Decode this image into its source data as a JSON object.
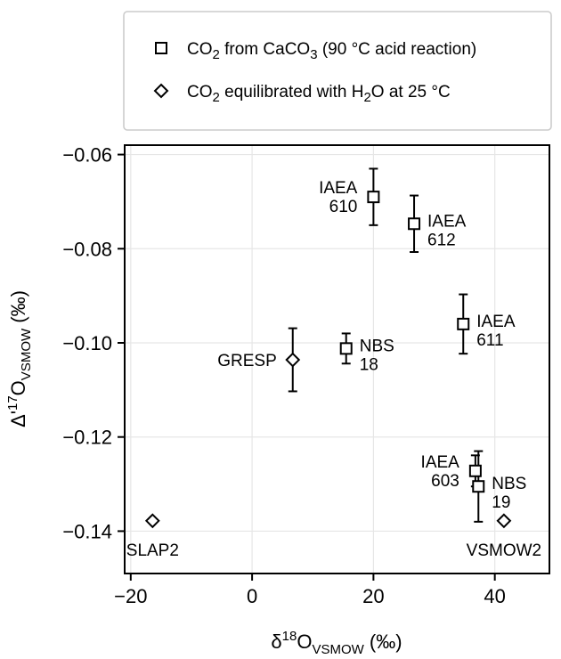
{
  "chart_data": {
    "type": "scatter",
    "xlabel": {
      "base": "δ",
      "sup": "18",
      "mid": "O",
      "sub": "VSMOW",
      "unit": " (‰)"
    },
    "ylabel": {
      "base": "Δ'",
      "sup": "17",
      "mid": "O",
      "sub": "VSMOW",
      "unit": " (‰)"
    },
    "xlim": [
      -21,
      49
    ],
    "ylim": [
      -0.149,
      -0.058
    ],
    "x_ticks": [
      {
        "value": -20,
        "label": "−20"
      },
      {
        "value": 0,
        "label": "0"
      },
      {
        "value": 20,
        "label": "20"
      },
      {
        "value": 40,
        "label": "40"
      }
    ],
    "y_ticks": [
      {
        "value": -0.06,
        "label": "−0.06"
      },
      {
        "value": -0.08,
        "label": "−0.08"
      },
      {
        "value": -0.1,
        "label": "−0.10"
      },
      {
        "value": -0.12,
        "label": "−0.12"
      },
      {
        "value": -0.14,
        "label": "−0.14"
      }
    ],
    "grid": true,
    "legend_position": "top",
    "series": [
      {
        "marker": "square",
        "legend": [
          {
            "t": "CO"
          },
          {
            "t": "2",
            "sub": true
          },
          {
            "t": " from CaCO"
          },
          {
            "t": "3",
            "sub": true
          },
          {
            "t": " (90 °C acid reaction)"
          }
        ],
        "points": [
          {
            "x": 20.0,
            "y": -0.069,
            "err": 0.006,
            "label": [
              "IAEA",
              "610"
            ],
            "label_side": "left"
          },
          {
            "x": 26.7,
            "y": -0.0747,
            "err": 0.006,
            "label": [
              "IAEA",
              "612"
            ],
            "label_side": "right"
          },
          {
            "x": 34.8,
            "y": -0.096,
            "err": 0.0063,
            "label": [
              "IAEA",
              "611"
            ],
            "label_side": "right"
          },
          {
            "x": 15.5,
            "y": -0.1012,
            "err": 0.0032,
            "label": [
              "NBS",
              "18"
            ],
            "label_side": "right"
          },
          {
            "x": 36.8,
            "y": -0.1272,
            "err": 0.0033,
            "label": [
              "IAEA",
              "603"
            ],
            "label_side": "left"
          },
          {
            "x": 37.3,
            "y": -0.1305,
            "err": 0.0075,
            "label": [
              "NBS",
              "19"
            ],
            "label_side": "right"
          }
        ]
      },
      {
        "marker": "diamond",
        "legend": [
          {
            "t": "CO"
          },
          {
            "t": "2",
            "sub": true
          },
          {
            "t": " equilibrated with H"
          },
          {
            "t": "2",
            "sub": true
          },
          {
            "t": "O at 25 °C"
          }
        ],
        "points": [
          {
            "x": 6.7,
            "y": -0.1036,
            "err": 0.0067,
            "label": [
              "GRESP"
            ],
            "label_side": "left"
          },
          {
            "x": -16.4,
            "y": -0.1378,
            "err": 0,
            "label": [
              "SLAP2"
            ],
            "label_side": "below"
          },
          {
            "x": 41.5,
            "y": -0.1378,
            "err": 0,
            "label": [
              "VSMOW2"
            ],
            "label_side": "below"
          }
        ]
      }
    ]
  }
}
